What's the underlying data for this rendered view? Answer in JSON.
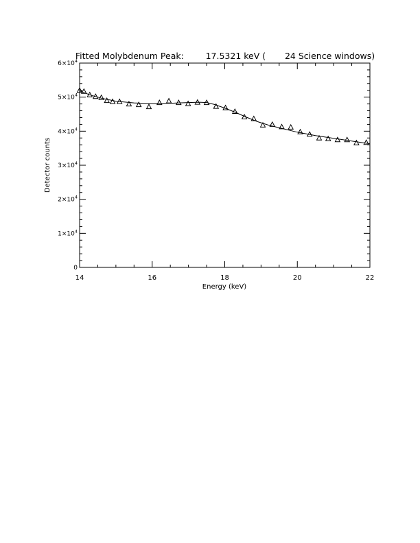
{
  "chart_data": {
    "type": "scatter",
    "title": "Fitted Molybdenum Peak:        17.5321 keV (       24 Science windows)",
    "xlabel": "Energy (keV)",
    "ylabel": "Detector counts",
    "xlim": [
      14,
      22
    ],
    "ylim": [
      0,
      60000
    ],
    "x_ticks": [
      14,
      16,
      18,
      20,
      22
    ],
    "y_ticks": [
      {
        "value": 0,
        "mant": "0",
        "exp": ""
      },
      {
        "value": 10000,
        "mant": "1×10",
        "exp": "4"
      },
      {
        "value": 20000,
        "mant": "2×10",
        "exp": "4"
      },
      {
        "value": 30000,
        "mant": "3×10",
        "exp": "4"
      },
      {
        "value": 40000,
        "mant": "4×10",
        "exp": "4"
      },
      {
        "value": 50000,
        "mant": "5×10",
        "exp": "4"
      },
      {
        "value": 60000,
        "mant": "6×10",
        "exp": "4"
      }
    ],
    "grid": false,
    "legend": "none",
    "series": [
      {
        "marker": "triangle",
        "x": [
          14.0,
          14.12,
          14.28,
          14.44,
          14.6,
          14.75,
          14.91,
          15.1,
          15.36,
          15.63,
          15.91,
          16.2,
          16.46,
          16.73,
          16.99,
          17.25,
          17.5,
          17.76,
          18.02,
          18.28,
          18.54,
          18.8,
          19.05,
          19.31,
          19.57,
          19.82,
          20.08,
          20.34,
          20.6,
          20.85,
          21.11,
          21.37,
          21.63,
          21.9
        ],
        "y": [
          52000,
          51700,
          50700,
          50200,
          49900,
          49000,
          48700,
          48700,
          48000,
          47800,
          47200,
          48400,
          48900,
          48400,
          48100,
          48500,
          48400,
          47300,
          46900,
          45800,
          44200,
          43700,
          41800,
          42000,
          41300,
          41200,
          39800,
          39100,
          38000,
          37800,
          37500,
          37500,
          36600,
          36700
        ]
      },
      {
        "marker": "line",
        "x": [
          14.0,
          14.3,
          14.6,
          15.0,
          15.5,
          16.0,
          16.5,
          17.0,
          17.3,
          17.5,
          17.7,
          18.0,
          18.3,
          18.6,
          18.9,
          19.2,
          19.5,
          20.0,
          20.5,
          21.0,
          21.5,
          22.0
        ],
        "y": [
          51800,
          50600,
          49700,
          48800,
          48300,
          48100,
          48200,
          48400,
          48500,
          48400,
          47900,
          46800,
          45500,
          44100,
          42800,
          41800,
          41000,
          39700,
          38700,
          37900,
          37100,
          36300
        ]
      }
    ]
  }
}
